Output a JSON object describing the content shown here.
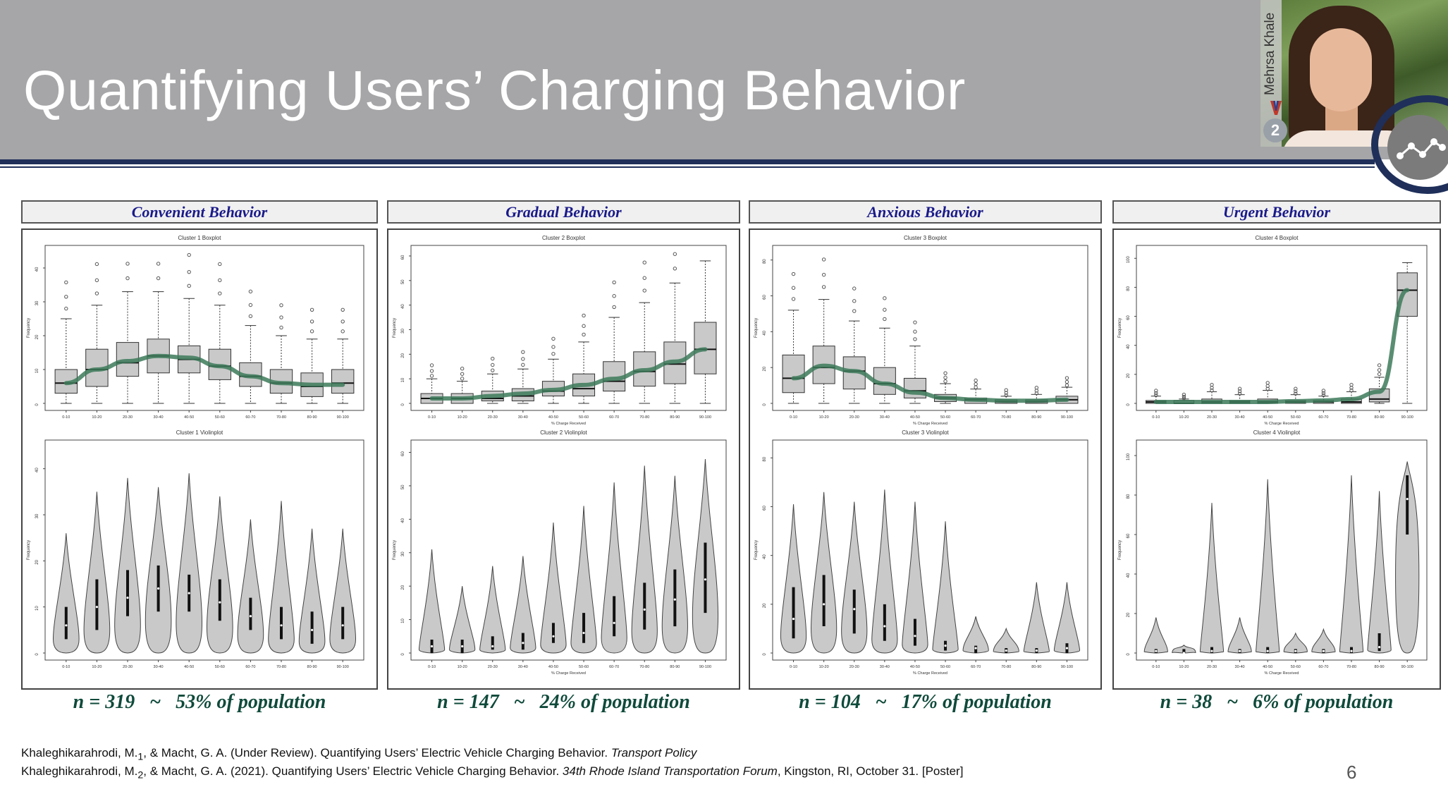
{
  "slide": {
    "title": "Quantifying Users’ Charging Behavior",
    "page_number": "6",
    "presenter_name": "Mehrsa Khale",
    "medal_number": "2"
  },
  "panels": [
    {
      "header": "Convenient Behavior",
      "stat_n": "n = 319",
      "stat_tilde": "~",
      "stat_pct": "53% of population",
      "box_title": "Cluster 1 Boxplot",
      "violin_title": "Cluster 1 Violinplot",
      "ylabel": "Frequency",
      "box_yticks": [
        "0",
        "10",
        "20",
        "30",
        "40"
      ],
      "violin_yticks": [
        "0",
        "10",
        "20",
        "30",
        "40"
      ],
      "xtitle": "",
      "box_ymax": 45,
      "violin_ymax": 45,
      "medians": [
        6,
        10,
        12,
        14,
        13,
        11,
        8,
        6,
        5,
        6
      ],
      "q1": [
        3,
        5,
        8,
        9,
        9,
        7,
        5,
        3,
        2,
        3
      ],
      "q3": [
        10,
        16,
        18,
        19,
        17,
        16,
        12,
        10,
        9,
        10
      ],
      "whisker_hi": [
        25,
        29,
        33,
        33,
        31,
        29,
        23,
        20,
        19,
        19
      ],
      "violin_max": [
        26,
        35,
        38,
        36,
        39,
        34,
        29,
        33,
        27,
        27
      ],
      "trend": [
        6,
        10,
        12.5,
        14,
        13.5,
        11,
        8,
        6,
        5.5,
        5.5
      ]
    },
    {
      "header": "Gradual Behavior",
      "stat_n": "n = 147",
      "stat_tilde": "~",
      "stat_pct": "24% of population",
      "box_title": "Cluster 2 Boxplot",
      "violin_title": "Cluster 2 Violinplot",
      "ylabel": "Frequency",
      "box_yticks": [
        "0",
        "10",
        "20",
        "30",
        "40",
        "50",
        "60"
      ],
      "violin_yticks": [
        "0",
        "10",
        "20",
        "30",
        "40",
        "50",
        "60"
      ],
      "xtitle": "% Charge Received",
      "box_ymax": 62,
      "violin_ymax": 62,
      "medians": [
        2,
        2,
        2,
        3,
        5,
        6,
        9,
        13,
        16,
        22
      ],
      "q1": [
        0,
        0,
        1,
        1,
        3,
        3,
        5,
        7,
        8,
        12
      ],
      "q3": [
        4,
        4,
        5,
        6,
        9,
        12,
        17,
        21,
        25,
        33
      ],
      "whisker_hi": [
        10,
        9,
        12,
        14,
        18,
        25,
        35,
        41,
        49,
        58
      ],
      "violin_max": [
        31,
        20,
        26,
        29,
        39,
        44,
        51,
        56,
        53,
        58
      ],
      "trend": [
        2,
        2,
        3,
        4,
        5.5,
        7.5,
        10,
        13.5,
        17,
        22
      ]
    },
    {
      "header": "Anxious Behavior",
      "stat_n": "n = 104",
      "stat_tilde": "~",
      "stat_pct": "17% of population",
      "box_title": "Cluster 3 Boxplot",
      "violin_title": "Cluster 3 Violinplot",
      "ylabel": "Frequency",
      "box_yticks": [
        "0",
        "20",
        "40",
        "60",
        "80"
      ],
      "violin_yticks": [
        "0",
        "20",
        "40",
        "60",
        "80"
      ],
      "xtitle": "% Charge Received",
      "box_ymax": 85,
      "violin_ymax": 85,
      "medians": [
        14,
        20,
        18,
        11,
        7,
        3,
        2,
        1,
        1,
        2
      ],
      "q1": [
        6,
        11,
        8,
        5,
        3,
        1,
        0,
        0,
        0,
        0
      ],
      "q3": [
        27,
        32,
        26,
        20,
        14,
        5,
        3,
        2,
        2,
        4
      ],
      "whisker_hi": [
        52,
        58,
        46,
        42,
        32,
        11,
        8,
        4,
        5,
        9
      ],
      "violin_max": [
        61,
        66,
        62,
        67,
        62,
        54,
        15,
        10,
        29,
        29
      ],
      "trend": [
        14,
        21,
        18,
        11,
        6,
        3,
        2,
        1.5,
        1.5,
        2
      ]
    },
    {
      "header": "Urgent Behavior",
      "stat_n": "n = 38",
      "stat_tilde": "~",
      "stat_pct": "6% of population",
      "box_title": "Cluster 4 Boxplot",
      "violin_title": "Cluster 4 Violinplot",
      "ylabel": "Frequency",
      "box_yticks": [
        "0",
        "20",
        "40",
        "60",
        "80",
        "100"
      ],
      "violin_yticks": [
        "0",
        "20",
        "40",
        "60",
        "80",
        "100"
      ],
      "xtitle": "% Charge Received",
      "box_ymax": 105,
      "violin_ymax": 105,
      "medians": [
        1,
        0,
        1,
        1,
        1,
        1,
        1,
        1,
        3,
        78
      ],
      "q1": [
        0,
        0,
        0,
        0,
        0,
        0,
        0,
        0,
        1,
        60
      ],
      "q3": [
        2,
        2,
        3,
        2,
        3,
        2,
        2,
        3,
        10,
        90
      ],
      "whisker_hi": [
        5,
        3,
        8,
        6,
        9,
        6,
        5,
        8,
        18,
        97
      ],
      "violin_max": [
        18,
        4,
        76,
        18,
        88,
        10,
        12,
        90,
        82,
        97
      ],
      "trend": [
        1,
        1,
        1,
        1,
        1,
        1.5,
        2,
        3,
        8,
        78
      ]
    }
  ],
  "x_categories": [
    "0-10",
    "10-20",
    "20-30",
    "30-40",
    "40-50",
    "50-60",
    "60-70",
    "70-80",
    "80-90",
    "90-100"
  ],
  "colors": {
    "trend_green": "#3d7a5a",
    "box_fill": "#c9c9c9",
    "header_text": "#1a1a8a",
    "stat_text": "#0f4a3a",
    "navy": "#1f2f5a"
  },
  "citations": [
    {
      "text": "Khaleghikarahrodi, M.",
      "sub": "1",
      "rest": ", & Macht, G. A. (Under Review). Quantifying Users’ Electric Vehicle Charging Behavior. ",
      "journal": "Transport Policy",
      "tail": ""
    },
    {
      "text": "Khaleghikarahrodi, M.",
      "sub": "2",
      "rest": ", & Macht, G. A. (2021). Quantifying Users’ Electric Vehicle Charging Behavior. ",
      "journal": "34th Rhode Island Transportation Forum",
      "tail": ", Kingston, RI, October 31. [Poster]"
    }
  ]
}
